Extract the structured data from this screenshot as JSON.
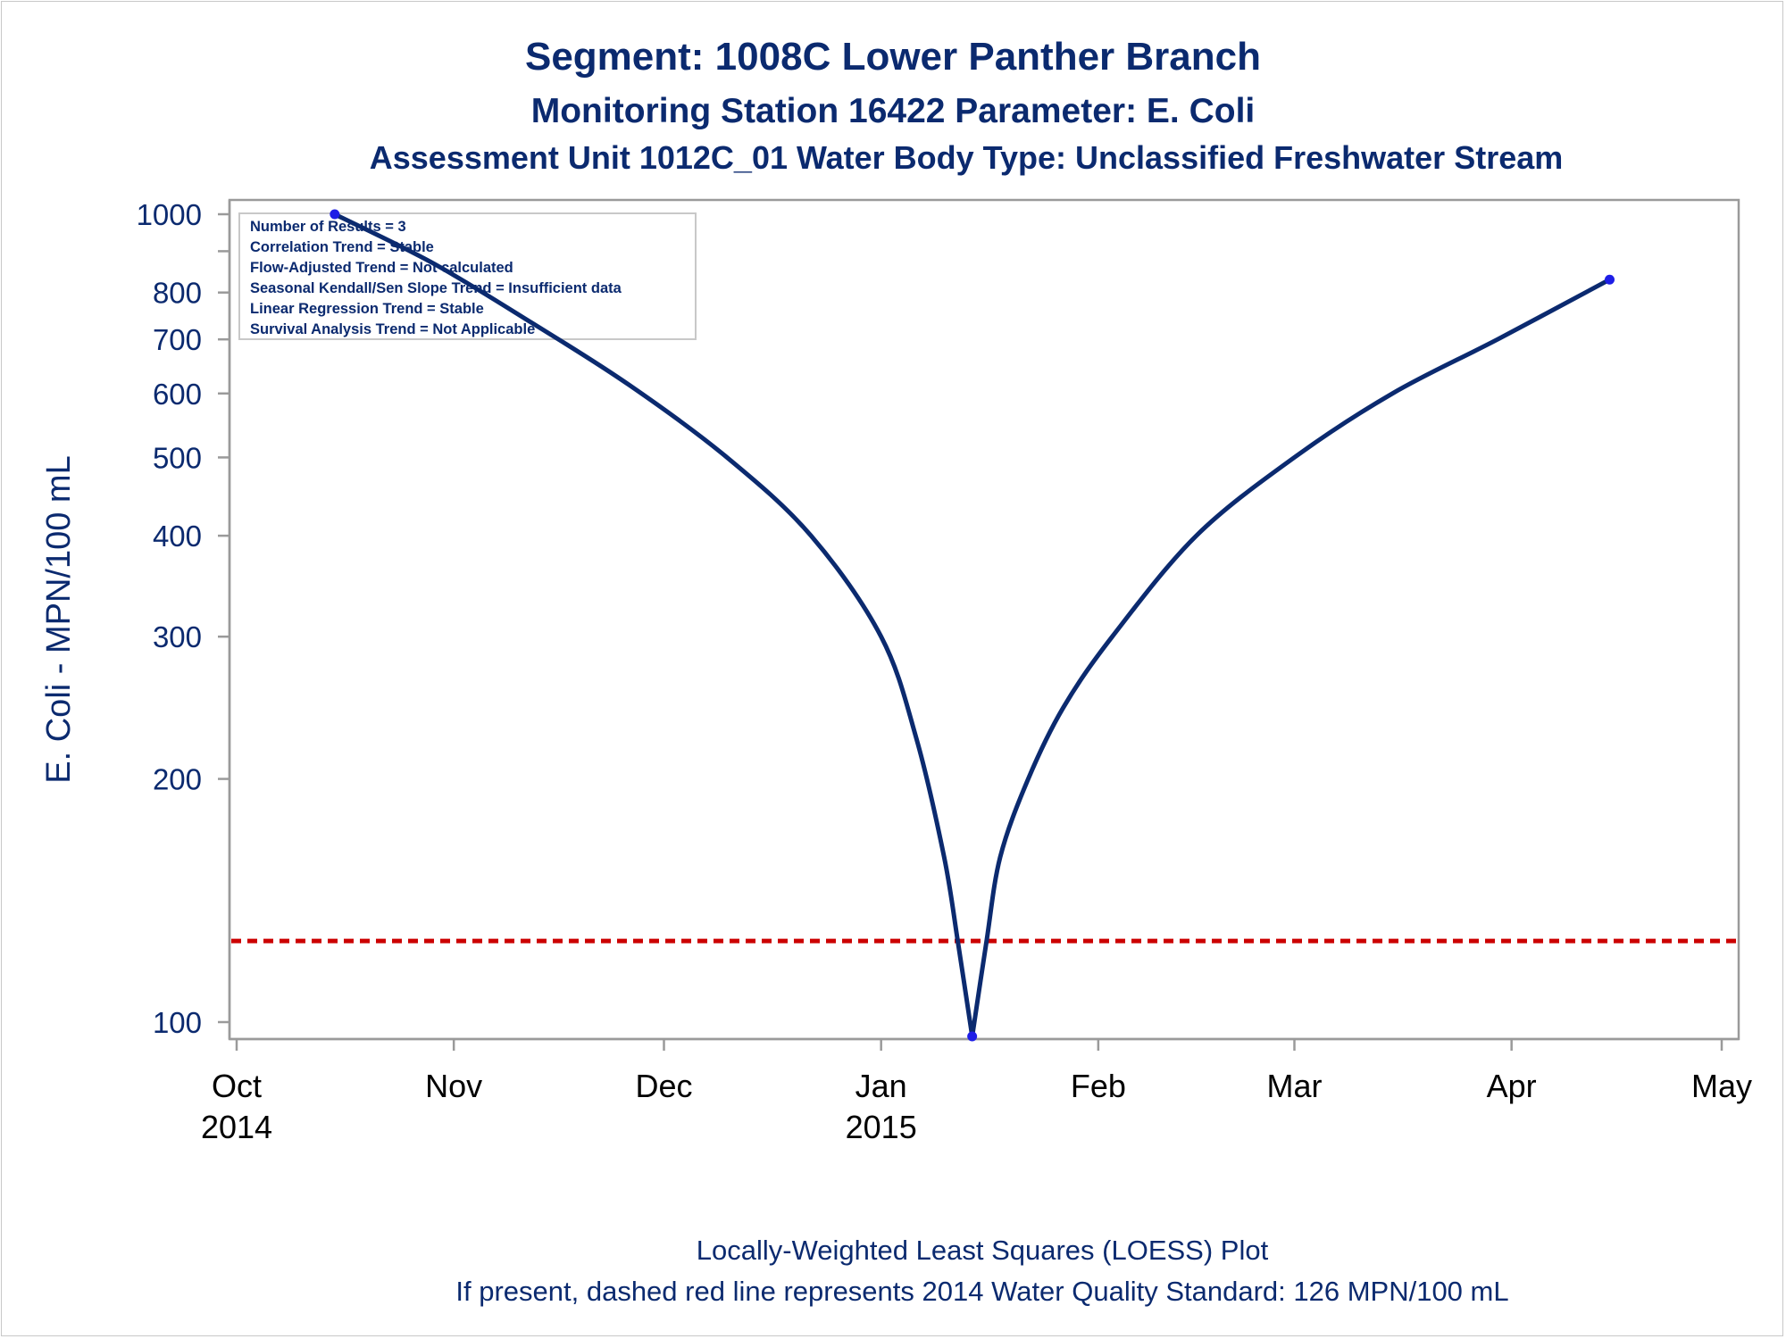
{
  "chart_data": {
    "type": "line",
    "title": "Segment: 1008C  Lower Panther Branch",
    "subtitle": "Monitoring Station 16422 Parameter: E. Coli",
    "subtitle2": "Assessment Unit 1012C_01   Water Body Type: Unclassified Freshwater Stream",
    "ylabel": "E. Coli - MPN/100 mL",
    "yscale": "log",
    "ylim": [
      96,
      1000
    ],
    "yticks": [
      {
        "value": 100,
        "label": "100"
      },
      {
        "value": 200,
        "label": "200"
      },
      {
        "value": 300,
        "label": "300"
      },
      {
        "value": 400,
        "label": "400"
      },
      {
        "value": 500,
        "label": "500"
      },
      {
        "value": 600,
        "label": "600"
      },
      {
        "value": 700,
        "label": "700"
      },
      {
        "value": 800,
        "label": "800"
      },
      {
        "value": 900,
        "label": ""
      },
      {
        "value": 1000,
        "label": "1000"
      }
    ],
    "xlim": [
      "2014-10-01",
      "2015-05-01"
    ],
    "xticks": [
      {
        "date": "2014-10-01",
        "label": "Oct",
        "label2": "2014"
      },
      {
        "date": "2014-11-01",
        "label": "Nov",
        "label2": ""
      },
      {
        "date": "2014-12-01",
        "label": "Dec",
        "label2": ""
      },
      {
        "date": "2015-01-01",
        "label": "Jan",
        "label2": "2015"
      },
      {
        "date": "2015-02-01",
        "label": "Feb",
        "label2": ""
      },
      {
        "date": "2015-03-01",
        "label": "Mar",
        "label2": ""
      },
      {
        "date": "2015-04-01",
        "label": "Apr",
        "label2": ""
      },
      {
        "date": "2015-05-01",
        "label": "May",
        "label2": ""
      }
    ],
    "points": [
      {
        "date": "2014-10-15",
        "value": 1000
      },
      {
        "date": "2015-01-14",
        "value": 96
      },
      {
        "date": "2015-04-15",
        "value": 830
      }
    ],
    "loess": [
      {
        "date": "2014-10-15",
        "value": 1000
      },
      {
        "date": "2014-10-29",
        "value": 870
      },
      {
        "date": "2014-11-12",
        "value": 735
      },
      {
        "date": "2014-11-26",
        "value": 615
      },
      {
        "date": "2014-12-10",
        "value": 500
      },
      {
        "date": "2014-12-22",
        "value": 400
      },
      {
        "date": "2015-01-01",
        "value": 300
      },
      {
        "date": "2015-01-06",
        "value": 225
      },
      {
        "date": "2015-01-10",
        "value": 160
      },
      {
        "date": "2015-01-12",
        "value": 125
      },
      {
        "date": "2015-01-14",
        "value": 96
      },
      {
        "date": "2015-01-16",
        "value": 125
      },
      {
        "date": "2015-01-18",
        "value": 160
      },
      {
        "date": "2015-01-22",
        "value": 200
      },
      {
        "date": "2015-01-27",
        "value": 245
      },
      {
        "date": "2015-02-03",
        "value": 300
      },
      {
        "date": "2015-02-15",
        "value": 400
      },
      {
        "date": "2015-03-01",
        "value": 500
      },
      {
        "date": "2015-03-15",
        "value": 600
      },
      {
        "date": "2015-03-30",
        "value": 700
      },
      {
        "date": "2015-04-15",
        "value": 830
      }
    ],
    "standard": {
      "value": 126,
      "style": "dashed",
      "color": "#cc0000"
    },
    "stats_box": [
      "Number of Results = 3",
      "Correlation Trend = Stable",
      "Flow-Adjusted Trend = Not calculated",
      "Seasonal Kendall/Sen Slope Trend = Insufficient data",
      "Linear Regression Trend = Stable",
      "Survival Analysis Trend = Not Applicable"
    ],
    "footnote1": "Locally-Weighted Least Squares (LOESS) Plot",
    "footnote2": "If present, dashed red line represents 2014 Water Quality Standard: 126 MPN/100 mL",
    "colors": {
      "line": "#0b2a6f",
      "marker": "#1e1ee6",
      "text": "#0b2a6f",
      "standard": "#cc0000",
      "axis": "#9a9a9a"
    },
    "grid": false
  }
}
